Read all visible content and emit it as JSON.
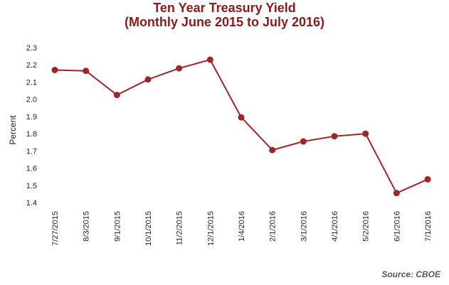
{
  "chart_data": {
    "type": "line",
    "title": "Ten Year Treasury Yield",
    "subtitle": "(Monthly June 2015 to July 2016)",
    "xlabel": "",
    "ylabel": "Percent",
    "ylim": [
      1.4,
      2.3
    ],
    "yticks": [
      "1.4",
      "1.5",
      "1.6",
      "1.7",
      "1.8",
      "1.9",
      "2.0",
      "2.1",
      "2.2",
      "2.3"
    ],
    "categories": [
      "7/27/2015",
      "8/3/2015",
      "9/1/2015",
      "10/1/2015",
      "11/2/2015",
      "12/1/2015",
      "1/4/2016",
      "2/1/2016",
      "3/1/2016",
      "4/1/2016",
      "5/2/2016",
      "6/1/2016",
      "7/1/2016"
    ],
    "series": [
      {
        "values": [
          2.17,
          2.165,
          2.025,
          2.115,
          2.18,
          2.23,
          1.895,
          1.705,
          1.755,
          1.785,
          1.8,
          1.455,
          1.535
        ],
        "color": "#a0262a"
      }
    ],
    "grid": false,
    "legend": "none",
    "source": "Source: CBOE"
  }
}
